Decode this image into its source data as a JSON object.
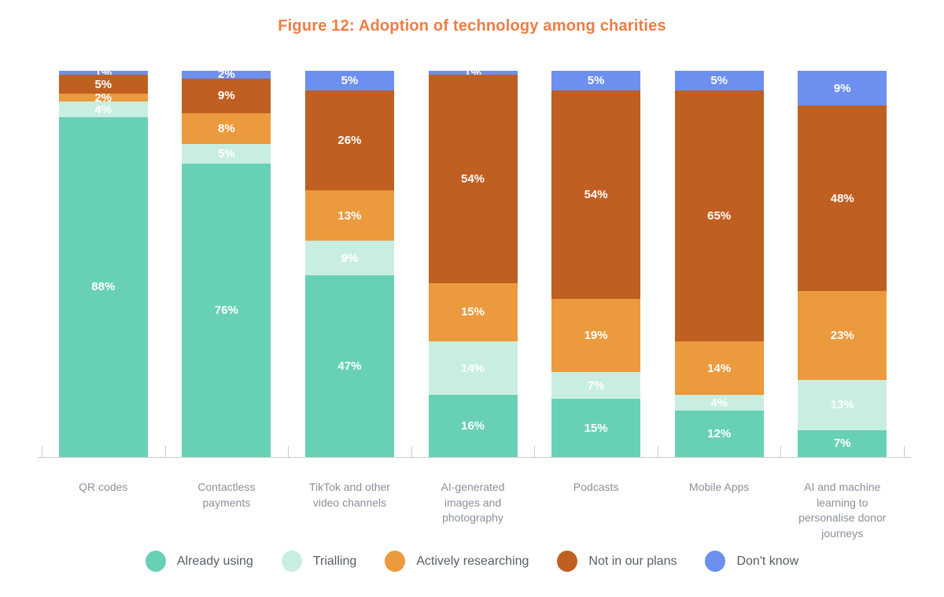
{
  "title": "Figure 12: Adoption of technology among charities",
  "colors": {
    "title": "#EE7D45",
    "axis": "#c9cdd1",
    "category_label": "#8a919c",
    "legend_label": "#565e68",
    "value_label": "#ffffff"
  },
  "chart_data": {
    "type": "bar",
    "stacked": true,
    "unit": "%",
    "title": "Figure 12: Adoption of technology among charities",
    "categories": [
      "QR codes",
      "Contactless payments",
      "TikTok and other video channels",
      "AI-generated images and photography",
      "Podcasts",
      "Mobile Apps",
      "AI and machine learning to personalise donor journeys"
    ],
    "series": [
      {
        "name": "Already using",
        "color": "#68D1B5",
        "values": [
          88,
          76,
          47,
          16,
          15,
          12,
          7
        ]
      },
      {
        "name": "Trialling",
        "color": "#C8EEE2",
        "values": [
          4,
          5,
          9,
          14,
          7,
          4,
          13
        ]
      },
      {
        "name": "Actively researching",
        "color": "#EB9A3D",
        "values": [
          2,
          8,
          13,
          15,
          19,
          14,
          23
        ]
      },
      {
        "name": "Not in our plans",
        "color": "#C05F22",
        "values": [
          5,
          9,
          26,
          54,
          54,
          65,
          48
        ]
      },
      {
        "name": "Don't know",
        "color": "#6D8FF0",
        "values": [
          1,
          2,
          5,
          1,
          5,
          5,
          9
        ]
      }
    ],
    "ylim": [
      0,
      100
    ],
    "grid": false,
    "legend_position": "bottom",
    "value_labels": "inside-white"
  }
}
